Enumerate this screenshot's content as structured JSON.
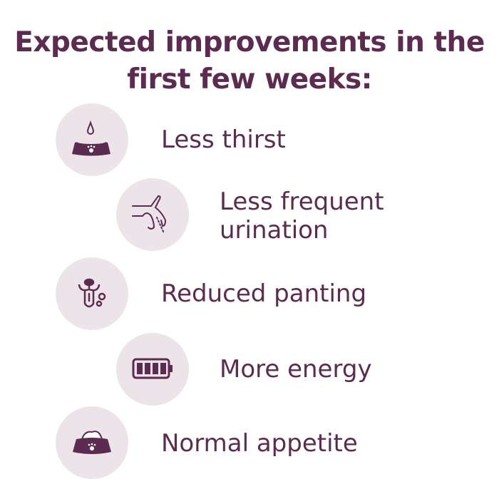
{
  "title_line1": "Expected improvements in the",
  "title_line2": "first few weeks:",
  "items": [
    {
      "icon": "water-bowl-icon",
      "label": "Less thirst"
    },
    {
      "icon": "dog-urinating-icon",
      "label_line1": "Less frequent",
      "label_line2": "urination"
    },
    {
      "icon": "panting-tongue-icon",
      "label": "Reduced panting"
    },
    {
      "icon": "full-battery-icon",
      "label": "More energy"
    },
    {
      "icon": "food-bowl-icon",
      "label": "Normal appetite"
    }
  ],
  "colors": {
    "text": "#5b2c4f",
    "circle": "#ede4ea"
  }
}
